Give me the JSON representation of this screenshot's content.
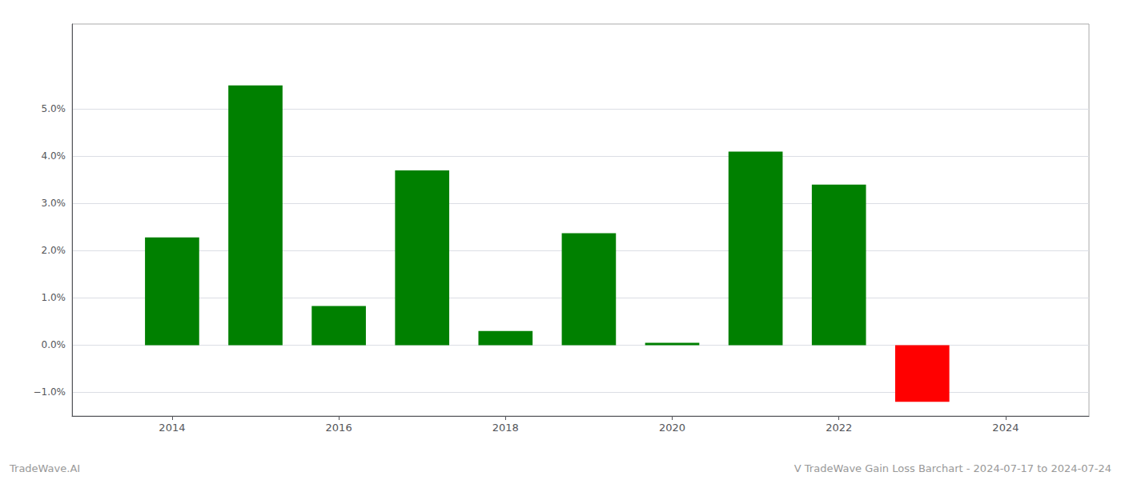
{
  "chart_data": {
    "type": "bar",
    "x": [
      2014,
      2015,
      2016,
      2017,
      2018,
      2019,
      2020,
      2021,
      2022,
      2023
    ],
    "values": [
      0.0228,
      0.055,
      0.0083,
      0.037,
      0.003,
      0.0237,
      0.0005,
      0.041,
      0.034,
      -0.012
    ],
    "colors": [
      "#008000",
      "#008000",
      "#008000",
      "#008000",
      "#008000",
      "#008000",
      "#008000",
      "#008000",
      "#008000",
      "#ff0000"
    ],
    "xlim": [
      2012.8,
      2025.0
    ],
    "xticks": [
      2014,
      2016,
      2018,
      2020,
      2022,
      2024
    ],
    "ylim": [
      -0.015,
      0.068
    ],
    "yticks": [
      {
        "value": -0.01,
        "label": "−1.0%"
      },
      {
        "value": 0.0,
        "label": "0.0%"
      },
      {
        "value": 0.01,
        "label": "1.0%"
      },
      {
        "value": 0.02,
        "label": "2.0%"
      },
      {
        "value": 0.03,
        "label": "3.0%"
      },
      {
        "value": 0.04,
        "label": "4.0%"
      },
      {
        "value": 0.05,
        "label": "5.0%"
      }
    ],
    "grid": true,
    "annotations": [
      "TradeWave.AI",
      "V TradeWave Gain Loss Barchart - 2024-07-17 to 2024-07-24"
    ]
  }
}
